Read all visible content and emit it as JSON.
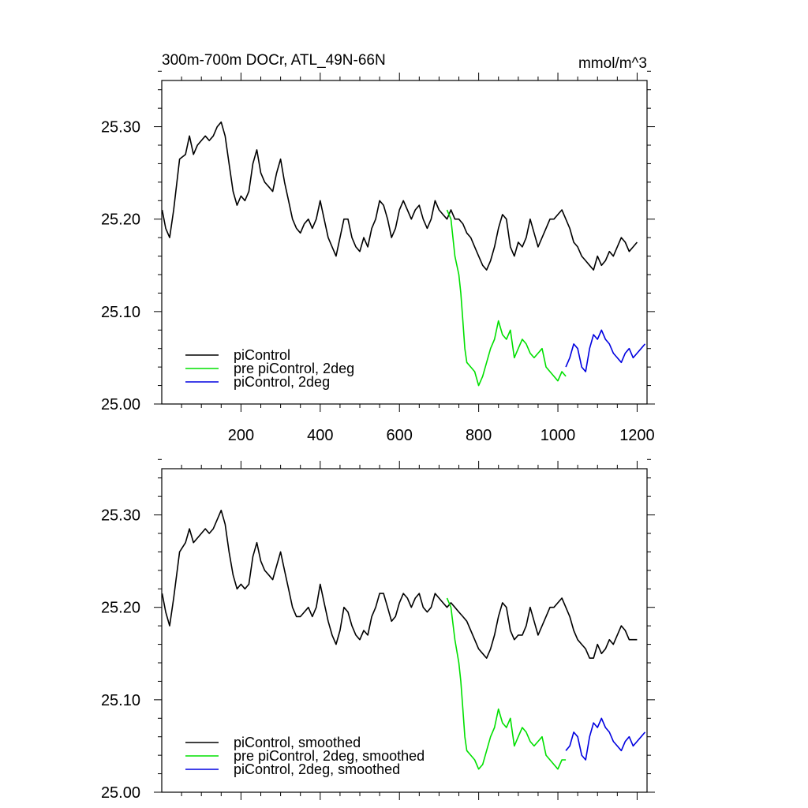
{
  "title_left": "300m-700m DOCr, ATL_49N-66N",
  "title_right": "mmol/m^3",
  "colors": {
    "piControl": "#000000",
    "pre_piControl_2deg": "#00e000",
    "piControl_2deg": "#0000e0"
  },
  "x_tick_labels": [
    "200",
    "400",
    "600",
    "800",
    "1000",
    "1200"
  ],
  "y_tick_labels": [
    "25.00",
    "25.10",
    "25.20",
    "25.30"
  ],
  "chart_data": [
    {
      "type": "line",
      "title": "300m-700m DOCr, ATL_49N-66N",
      "units": "mmol/m^3",
      "xlim": [
        0,
        1225
      ],
      "ylim": [
        25.0,
        25.35
      ],
      "x_ticks": [
        200,
        400,
        600,
        800,
        1000,
        1200
      ],
      "y_ticks": [
        25.0,
        25.1,
        25.2,
        25.3
      ],
      "legend_position": "bottom-left",
      "series": [
        {
          "name": "piControl",
          "color": "#000000",
          "x": [
            1,
            10,
            20,
            30,
            45,
            60,
            70,
            80,
            90,
            100,
            110,
            120,
            130,
            140,
            150,
            160,
            170,
            180,
            190,
            200,
            210,
            220,
            230,
            240,
            250,
            260,
            270,
            280,
            290,
            300,
            310,
            320,
            330,
            340,
            350,
            360,
            370,
            380,
            390,
            400,
            410,
            420,
            430,
            440,
            450,
            460,
            470,
            480,
            490,
            500,
            510,
            520,
            530,
            540,
            550,
            560,
            570,
            580,
            590,
            600,
            610,
            620,
            630,
            640,
            650,
            660,
            670,
            680,
            690,
            700,
            710,
            720,
            730,
            740,
            750,
            760,
            770,
            780,
            790,
            800,
            810,
            820,
            830,
            840,
            850,
            860,
            870,
            880,
            890,
            900,
            910,
            920,
            930,
            940,
            950,
            960,
            970,
            980,
            990,
            1000,
            1010,
            1020,
            1030,
            1040,
            1050,
            1060,
            1070,
            1080,
            1090,
            1100,
            1110,
            1120,
            1130,
            1140,
            1150,
            1160,
            1170,
            1180,
            1190,
            1200
          ],
          "y": [
            25.21,
            25.19,
            25.18,
            25.21,
            25.265,
            25.27,
            25.29,
            25.27,
            25.28,
            25.285,
            25.29,
            25.285,
            25.29,
            25.3,
            25.305,
            25.29,
            25.26,
            25.23,
            25.215,
            25.225,
            25.22,
            25.23,
            25.26,
            25.275,
            25.25,
            25.24,
            25.235,
            25.23,
            25.25,
            25.265,
            25.24,
            25.22,
            25.2,
            25.19,
            25.185,
            25.195,
            25.2,
            25.19,
            25.2,
            25.22,
            25.2,
            25.18,
            25.17,
            25.16,
            25.18,
            25.2,
            25.2,
            25.18,
            25.17,
            25.165,
            25.18,
            25.17,
            25.19,
            25.2,
            25.22,
            25.215,
            25.2,
            25.18,
            25.19,
            25.21,
            25.22,
            25.21,
            25.2,
            25.21,
            25.215,
            25.2,
            25.19,
            25.2,
            25.22,
            25.21,
            25.205,
            25.2,
            25.21,
            25.2,
            25.2,
            25.195,
            25.185,
            25.18,
            25.17,
            25.16,
            25.15,
            25.145,
            25.155,
            25.17,
            25.19,
            25.205,
            25.2,
            25.17,
            25.16,
            25.175,
            25.17,
            25.18,
            25.2,
            25.185,
            25.17,
            25.18,
            25.19,
            25.2,
            25.2,
            25.205,
            25.21,
            25.2,
            25.19,
            25.175,
            25.17,
            25.16,
            25.155,
            25.15,
            25.145,
            25.16,
            25.15,
            25.155,
            25.165,
            25.16,
            25.17,
            25.18,
            25.175,
            25.165,
            25.17,
            25.175
          ]
        },
        {
          "name": "pre piControl, 2deg",
          "color": "#00e000",
          "x": [
            720,
            730,
            740,
            750,
            755,
            760,
            765,
            770,
            780,
            790,
            800,
            810,
            820,
            830,
            840,
            850,
            860,
            870,
            880,
            890,
            900,
            910,
            920,
            930,
            940,
            950,
            960,
            970,
            980,
            990,
            1000,
            1010,
            1020
          ],
          "y": [
            25.21,
            25.2,
            25.16,
            25.14,
            25.12,
            25.09,
            25.06,
            25.045,
            25.04,
            25.035,
            25.02,
            25.03,
            25.045,
            25.06,
            25.07,
            25.09,
            25.075,
            25.07,
            25.08,
            25.05,
            25.06,
            25.07,
            25.065,
            25.055,
            25.05,
            25.055,
            25.06,
            25.04,
            25.035,
            25.03,
            25.025,
            25.035,
            25.03
          ]
        },
        {
          "name": "piControl, 2deg",
          "color": "#0000e0",
          "x": [
            1020,
            1030,
            1040,
            1050,
            1060,
            1070,
            1080,
            1090,
            1100,
            1110,
            1120,
            1130,
            1140,
            1150,
            1160,
            1170,
            1180,
            1190,
            1200,
            1210,
            1220
          ],
          "y": [
            25.04,
            25.05,
            25.065,
            25.06,
            25.04,
            25.035,
            25.06,
            25.075,
            25.07,
            25.08,
            25.07,
            25.065,
            25.055,
            25.05,
            25.045,
            25.055,
            25.06,
            25.05,
            25.055,
            25.06,
            25.065
          ]
        }
      ]
    },
    {
      "type": "line",
      "xlim": [
        0,
        1225
      ],
      "ylim": [
        25.0,
        25.35
      ],
      "x_ticks": [
        200,
        400,
        600,
        800,
        1000,
        1200
      ],
      "y_ticks": [
        25.0,
        25.1,
        25.2,
        25.3
      ],
      "legend_position": "bottom-left",
      "series": [
        {
          "name": "piControl, smoothed",
          "color": "#000000",
          "x": [
            1,
            10,
            20,
            30,
            45,
            60,
            70,
            80,
            90,
            100,
            110,
            120,
            130,
            140,
            150,
            160,
            170,
            180,
            190,
            200,
            210,
            220,
            230,
            240,
            250,
            260,
            270,
            280,
            290,
            300,
            310,
            320,
            330,
            340,
            350,
            360,
            370,
            380,
            390,
            400,
            410,
            420,
            430,
            440,
            450,
            460,
            470,
            480,
            490,
            500,
            510,
            520,
            530,
            540,
            550,
            560,
            570,
            580,
            590,
            600,
            610,
            620,
            630,
            640,
            650,
            660,
            670,
            680,
            690,
            700,
            710,
            720,
            730,
            740,
            750,
            760,
            770,
            780,
            790,
            800,
            810,
            820,
            830,
            840,
            850,
            860,
            870,
            880,
            890,
            900,
            910,
            920,
            930,
            940,
            950,
            960,
            970,
            980,
            990,
            1000,
            1010,
            1020,
            1030,
            1040,
            1050,
            1060,
            1070,
            1080,
            1090,
            1100,
            1110,
            1120,
            1130,
            1140,
            1150,
            1160,
            1170,
            1180,
            1190,
            1200
          ],
          "y": [
            25.215,
            25.195,
            25.18,
            25.21,
            25.26,
            25.27,
            25.285,
            25.27,
            25.275,
            25.28,
            25.285,
            25.28,
            25.285,
            25.295,
            25.305,
            25.29,
            25.26,
            25.235,
            25.22,
            25.225,
            25.22,
            25.225,
            25.255,
            25.27,
            25.25,
            25.24,
            25.235,
            25.23,
            25.245,
            25.26,
            25.24,
            25.22,
            25.2,
            25.19,
            25.19,
            25.195,
            25.2,
            25.19,
            25.2,
            25.225,
            25.205,
            25.185,
            25.17,
            25.16,
            25.175,
            25.2,
            25.195,
            25.18,
            25.17,
            25.165,
            25.175,
            25.17,
            25.19,
            25.2,
            25.215,
            25.215,
            25.2,
            25.185,
            25.19,
            25.205,
            25.215,
            25.21,
            25.2,
            25.21,
            25.215,
            25.2,
            25.195,
            25.2,
            25.215,
            25.21,
            25.205,
            25.2,
            25.205,
            25.2,
            25.195,
            25.19,
            25.185,
            25.175,
            25.165,
            25.155,
            25.15,
            25.145,
            25.155,
            25.17,
            25.19,
            25.205,
            25.2,
            25.175,
            25.165,
            25.17,
            25.17,
            25.18,
            25.2,
            25.185,
            25.17,
            25.18,
            25.19,
            25.2,
            25.2,
            25.205,
            25.21,
            25.2,
            25.19,
            25.175,
            25.165,
            25.16,
            25.155,
            25.145,
            25.145,
            25.16,
            25.15,
            25.155,
            25.165,
            25.16,
            25.17,
            25.18,
            25.175,
            25.165,
            25.165,
            25.165
          ]
        },
        {
          "name": "pre piControl, 2deg, smoothed",
          "color": "#00e000",
          "x": [
            720,
            730,
            740,
            750,
            755,
            760,
            765,
            770,
            780,
            790,
            800,
            810,
            820,
            830,
            840,
            850,
            860,
            870,
            880,
            890,
            900,
            910,
            920,
            930,
            940,
            950,
            960,
            970,
            980,
            990,
            1000,
            1010,
            1020
          ],
          "y": [
            25.21,
            25.2,
            25.165,
            25.14,
            25.12,
            25.09,
            25.06,
            25.045,
            25.04,
            25.035,
            25.025,
            25.03,
            25.045,
            25.06,
            25.07,
            25.09,
            25.075,
            25.07,
            25.08,
            25.05,
            25.06,
            25.07,
            25.065,
            25.055,
            25.05,
            25.055,
            25.06,
            25.04,
            25.035,
            25.03,
            25.025,
            25.035,
            25.035
          ]
        },
        {
          "name": "piControl, 2deg, smoothed",
          "color": "#0000e0",
          "x": [
            1020,
            1030,
            1040,
            1050,
            1060,
            1070,
            1080,
            1090,
            1100,
            1110,
            1120,
            1130,
            1140,
            1150,
            1160,
            1170,
            1180,
            1190,
            1200,
            1210,
            1220
          ],
          "y": [
            25.045,
            25.05,
            25.065,
            25.06,
            25.04,
            25.035,
            25.06,
            25.075,
            25.07,
            25.08,
            25.07,
            25.065,
            25.055,
            25.05,
            25.045,
            25.055,
            25.06,
            25.05,
            25.055,
            25.06,
            25.065
          ]
        }
      ]
    }
  ]
}
